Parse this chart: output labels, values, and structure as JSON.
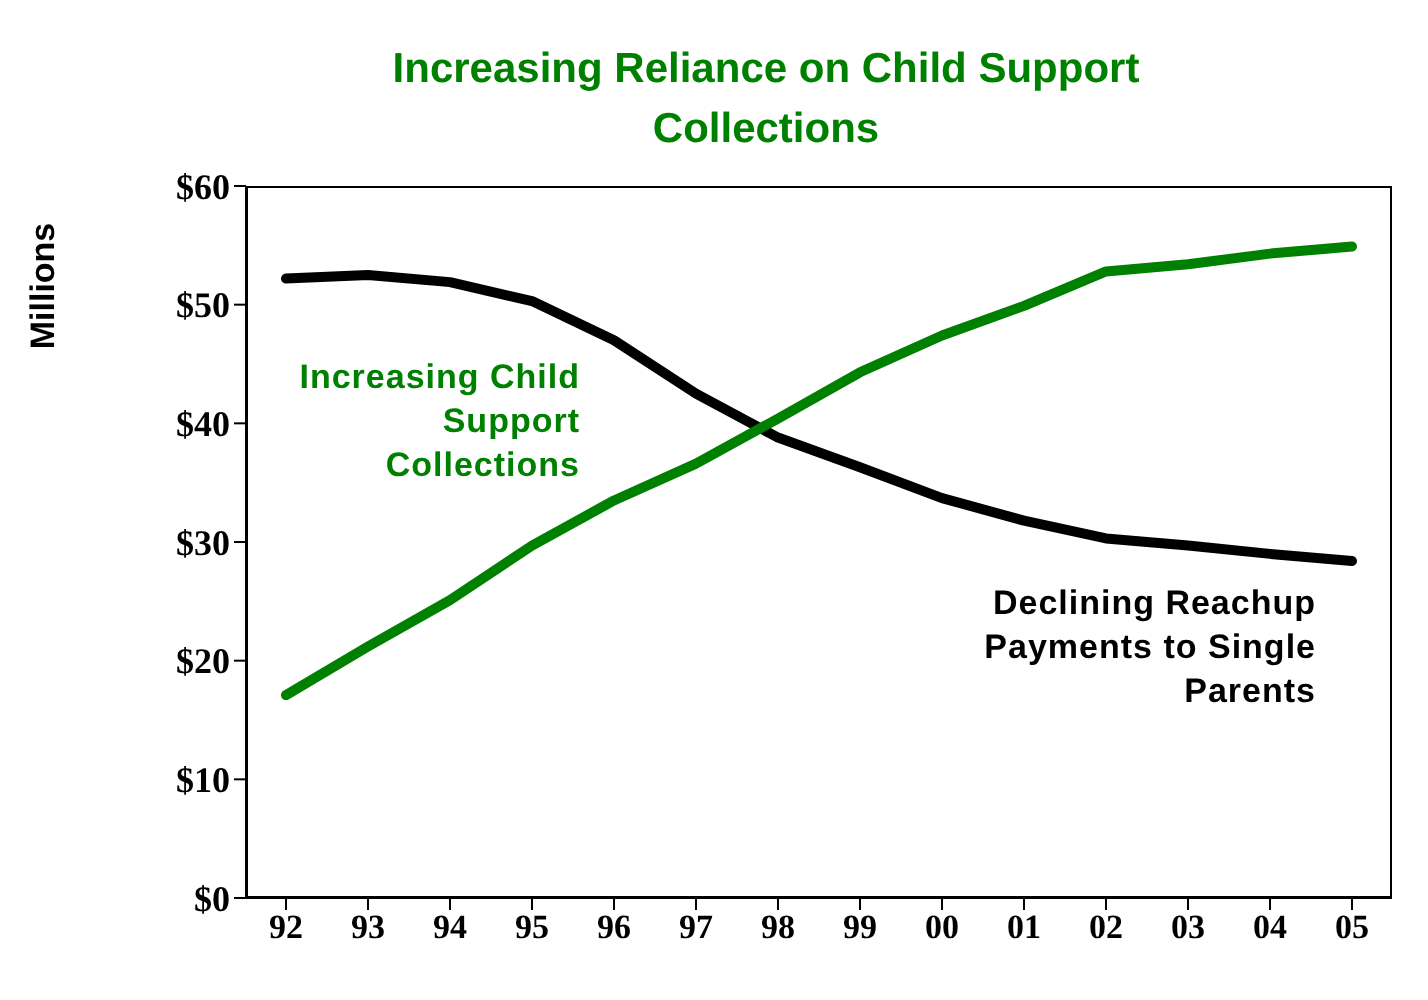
{
  "chart_data": {
    "type": "line",
    "title": "Increasing Reliance on Child Support Collections",
    "ylabel": "Millions",
    "categories": [
      "92",
      "93",
      "94",
      "95",
      "96",
      "97",
      "98",
      "99",
      "00",
      "01",
      "02",
      "03",
      "04",
      "05"
    ],
    "series": [
      {
        "name": "Declining Reachup Payments to Single Parents",
        "color": "#000000",
        "values": [
          52.2,
          52.5,
          51.9,
          50.3,
          47.0,
          42.5,
          38.8,
          36.3,
          33.7,
          31.8,
          30.3,
          29.7,
          29.0,
          28.4
        ]
      },
      {
        "name": "Increasing Child Support Collections",
        "color": "#008000",
        "values": [
          17.1,
          21.2,
          25.1,
          29.7,
          33.5,
          36.6,
          40.4,
          44.3,
          47.4,
          49.9,
          52.8,
          53.4,
          54.3,
          54.9
        ]
      }
    ],
    "ylim": [
      0,
      60
    ],
    "yticks": [
      {
        "value": 0,
        "label": "$0"
      },
      {
        "value": 10,
        "label": "$10"
      },
      {
        "value": 20,
        "label": "$20"
      },
      {
        "value": 30,
        "label": "$30"
      },
      {
        "value": 40,
        "label": "$40"
      },
      {
        "value": 50,
        "label": "$50"
      },
      {
        "value": 60,
        "label": "$60"
      }
    ],
    "marker": "none",
    "line_style": "solid",
    "grid": false
  }
}
